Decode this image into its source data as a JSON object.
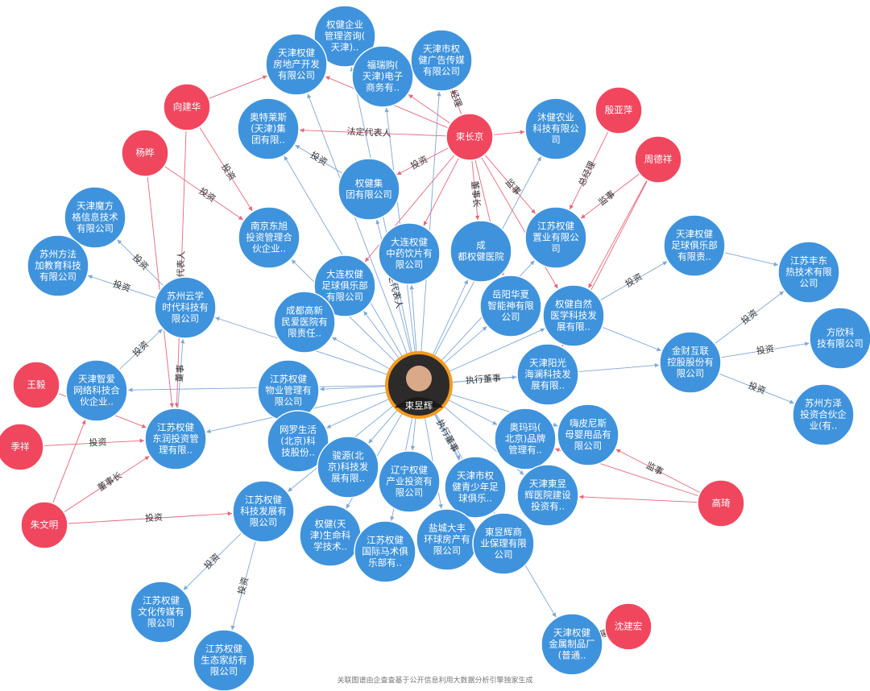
{
  "center": {
    "label": "束昱辉"
  },
  "companies": [
    {
      "lines": [
        "权健企业",
        "管理咨询(",
        "天津).."
      ]
    },
    {
      "lines": [
        "天津权健",
        "房地产开发",
        "有限公司"
      ]
    },
    {
      "lines": [
        "福瑞购(",
        "天津)电子",
        "商务有.."
      ]
    },
    {
      "lines": [
        "天津市权",
        "健广告传媒",
        "有限公司"
      ]
    },
    {
      "lines": [
        "奥特莱斯",
        "(天津)集",
        "团有限.."
      ]
    },
    {
      "lines": [
        "沐健农业",
        "科技有限公",
        "司"
      ]
    },
    {
      "lines": [
        "权健集",
        "团有限公司"
      ]
    },
    {
      "lines": [
        "天津魔方",
        "格信息技术",
        "有限公司"
      ]
    },
    {
      "lines": [
        "苏州方法",
        "加教育科技",
        "有限公司"
      ]
    },
    {
      "lines": [
        "南京东旭",
        "投资管理合",
        "伙企业.."
      ]
    },
    {
      "lines": [
        "大连权健",
        "中药饮片有",
        "限公司"
      ]
    },
    {
      "lines": [
        "成",
        "都权健医院"
      ]
    },
    {
      "lines": [
        "江苏权健",
        "置业有限公",
        "司"
      ]
    },
    {
      "lines": [
        "天津权健",
        "足球俱乐部",
        "有限责.."
      ]
    },
    {
      "lines": [
        "江苏丰东",
        "热技术有限",
        "公司"
      ]
    },
    {
      "lines": [
        "大连权健",
        "足球俱乐部",
        "有限公司"
      ]
    },
    {
      "lines": [
        "苏州云学",
        "时代科技有",
        "限公司"
      ]
    },
    {
      "lines": [
        "岳阳华夏",
        "智能神有限",
        "公司"
      ]
    },
    {
      "lines": [
        "权健自然",
        "医学科技发",
        "展有限.."
      ]
    },
    {
      "lines": [
        "成都高新",
        "民爱医院有",
        "限责任.."
      ]
    },
    {
      "lines": [
        "方欣科",
        "技有限公司"
      ]
    },
    {
      "lines": [
        "金财互联",
        "控股股份有",
        "限公司"
      ]
    },
    {
      "lines": [
        "天津阳光",
        "海澜科技发",
        "展有限.."
      ]
    },
    {
      "lines": [
        "天津智爱",
        "网络科技合",
        "伙企业.."
      ]
    },
    {
      "lines": [
        "江苏权健",
        "物业管理有",
        "限公司"
      ]
    },
    {
      "lines": [
        "苏州方泽",
        "投资合伙企",
        "业(有.."
      ]
    },
    {
      "lines": [
        "江苏权健",
        "东润投资管",
        "理有限.."
      ]
    },
    {
      "lines": [
        "网罗生活",
        "(北京)科",
        "技股份.."
      ]
    },
    {
      "lines": [
        "奥玛玛(",
        "北京)品牌",
        "管理有.."
      ]
    },
    {
      "lines": [
        "嗨皮尼斯",
        "母婴用品有",
        "限公司"
      ]
    },
    {
      "lines": [
        "骏源(北",
        "京)科技发",
        "展有限.."
      ]
    },
    {
      "lines": [
        "辽宁权健",
        "产业投资有",
        "限公司"
      ]
    },
    {
      "lines": [
        "天津市权",
        "健青少年足",
        "球俱乐.."
      ]
    },
    {
      "lines": [
        "天津東昱",
        "辉医院建设",
        "投资有.."
      ]
    },
    {
      "lines": [
        "江苏权健",
        "科技发展有",
        "限公司"
      ]
    },
    {
      "lines": [
        "权健(天",
        "津)生命科",
        "学技术.."
      ]
    },
    {
      "lines": [
        "江苏权健",
        "国际马术俱",
        "乐部有.."
      ]
    },
    {
      "lines": [
        "盐城大丰",
        "环球房产有",
        "限公司"
      ]
    },
    {
      "lines": [
        "東昱辉商",
        "业保理有限",
        "公司"
      ]
    },
    {
      "lines": [
        "江苏权健",
        "文化传媒有",
        "限公司"
      ]
    },
    {
      "lines": [
        "江苏权健",
        "生态家纺有",
        "限公司"
      ]
    },
    {
      "lines": [
        "天津权健",
        "金属制品厂",
        "(普通.."
      ]
    }
  ],
  "people": [
    "向建华",
    "杨晔",
    "束长京",
    "殷亚萍",
    "周德祥",
    "王毅",
    "季祥",
    "朱文明",
    "高琦",
    "沈建宏"
  ],
  "edge_labels": [
    "法定代表人",
    "执行董事",
    "董事长",
    "投资",
    "经理",
    "法定代表人",
    "董事长",
    "投资",
    "投资",
    "法定代表人",
    "投资",
    "总经理",
    "监事",
    "投资",
    "投资",
    "董事",
    "投资",
    "投资",
    "董事长",
    "投资",
    "投资",
    "投资",
    "投资",
    "监事",
    "投资",
    "投资",
    "经理",
    "投资",
    "执行董事",
    "监事"
  ],
  "footer": "关联图谱由企查查基于公开信息利用大数据分析引擎独家生成"
}
